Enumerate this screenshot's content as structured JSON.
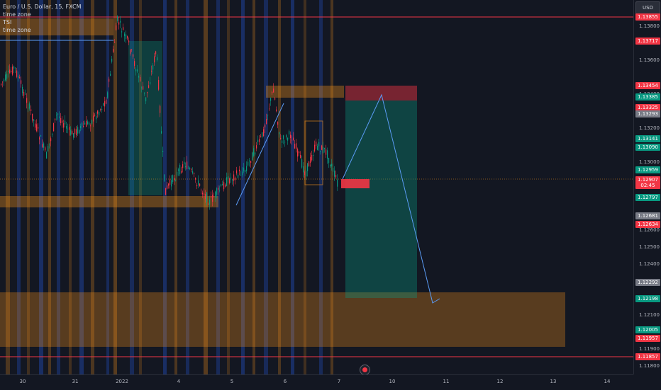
{
  "legend": {
    "symbol": "Euro / U.S. Dollar, 15, FXCM",
    "indicator_1": "time zone",
    "indicator_2": "TSI",
    "indicator_3": "time zone"
  },
  "currency_button": "USD",
  "price_ticks": [
    "1.13800",
    "1.13600",
    "1.13400",
    "1.13200",
    "1.13000",
    "1.12800",
    "1.12600",
    "1.12500",
    "1.12400",
    "1.12200",
    "1.12100",
    "1.11900",
    "1.11800"
  ],
  "price_labels": [
    {
      "text": "1.13855",
      "color": "#f23645"
    },
    {
      "text": "1.13717",
      "color": "#f23645"
    },
    {
      "text": "1.13454",
      "color": "#f23645"
    },
    {
      "text": "1.13385",
      "color": "#089981"
    },
    {
      "text": "1.13325",
      "color": "#f23645"
    },
    {
      "text": "1.13293",
      "color": "#787b86"
    },
    {
      "text": "1.13141",
      "color": "#089981"
    },
    {
      "text": "1.13090",
      "color": "#089981"
    },
    {
      "text": "1.12959",
      "color": "#089981"
    },
    {
      "text": "1.12907",
      "sub": "02:45",
      "color": "#f23645"
    },
    {
      "text": "1.12797",
      "color": "#089981"
    },
    {
      "text": "1.12681",
      "color": "#787b86"
    },
    {
      "text": "1.12634",
      "color": "#f23645"
    },
    {
      "text": "1.12292",
      "color": "#787b86"
    },
    {
      "text": "1.12198",
      "color": "#089981"
    },
    {
      "text": "1.12005",
      "color": "#089981"
    },
    {
      "text": "1.11957",
      "color": "#f23645"
    },
    {
      "text": "1.11857",
      "color": "#f23645"
    }
  ],
  "time_ticks": [
    "30",
    "31",
    "2022",
    "4",
    "5",
    "6",
    "7",
    "10",
    "11",
    "12",
    "13",
    "14"
  ],
  "colors": {
    "up": "#089981",
    "down": "#f23645",
    "zone": "#f7931a",
    "trend": "#5b9cf6"
  }
}
